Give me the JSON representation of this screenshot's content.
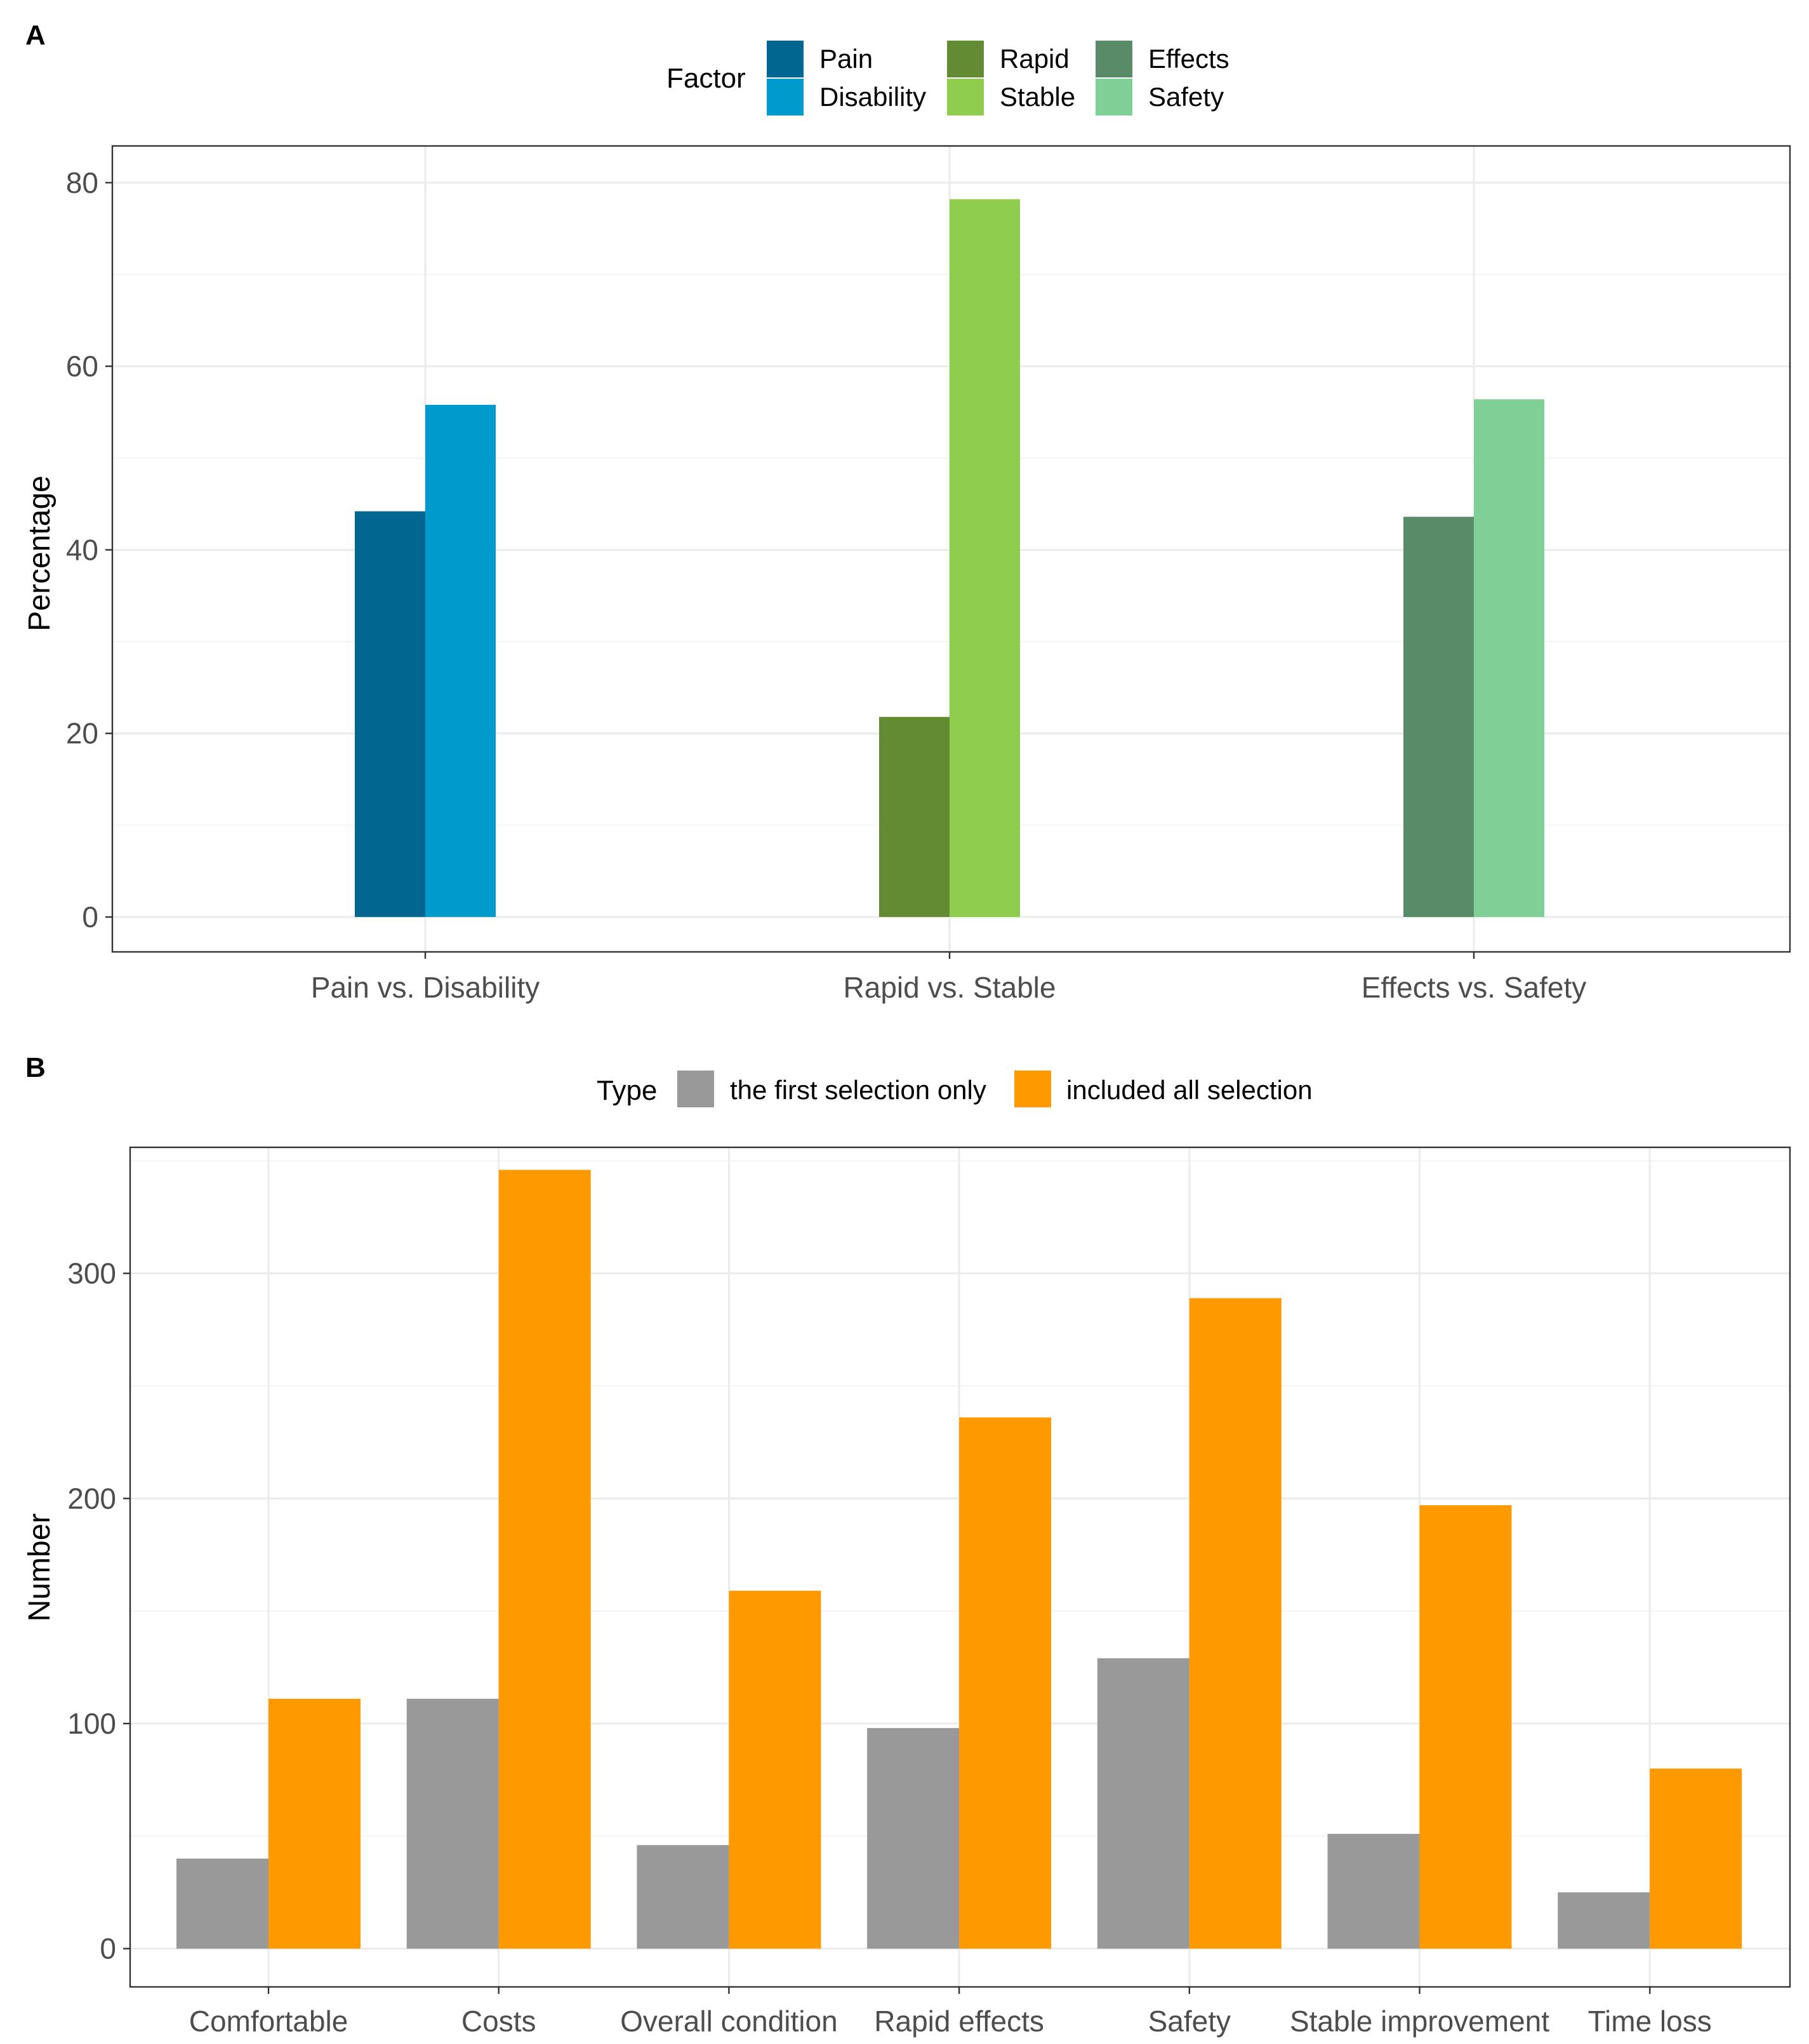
{
  "chart_data": [
    {
      "panel": "A",
      "type": "bar",
      "ylabel": "Percentage",
      "xlabel": "",
      "ylim": [
        -3.8,
        84
      ],
      "yticks": [
        0,
        20,
        40,
        60,
        80
      ],
      "grid": true,
      "legend": {
        "title": "Factor",
        "position": "top",
        "entries": [
          {
            "label": "Pain",
            "color": "#016790"
          },
          {
            "label": "Disability",
            "color": "#019ACD"
          },
          {
            "label": "Rapid",
            "color": "#628B33"
          },
          {
            "label": "Stable",
            "color": "#8FCD4F"
          },
          {
            "label": "Effects",
            "color": "#5A8B69"
          },
          {
            "label": "Safety",
            "color": "#80CF97"
          }
        ]
      },
      "categories": [
        "Pain vs. Disability",
        "Rapid vs. Stable",
        "Effects vs. Safety"
      ],
      "bars": [
        {
          "category": "Pain vs. Disability",
          "factor": "Pain",
          "value": 44.2,
          "color": "#016790"
        },
        {
          "category": "Pain vs. Disability",
          "factor": "Disability",
          "value": 55.8,
          "color": "#019ACD"
        },
        {
          "category": "Rapid vs. Stable",
          "factor": "Rapid",
          "value": 21.8,
          "color": "#628B33"
        },
        {
          "category": "Rapid vs. Stable",
          "factor": "Stable",
          "value": 78.2,
          "color": "#8FCD4F"
        },
        {
          "category": "Effects vs. Safety",
          "factor": "Effects",
          "value": 43.6,
          "color": "#5A8B69"
        },
        {
          "category": "Effects vs. Safety",
          "factor": "Safety",
          "value": 56.4,
          "color": "#80CF97"
        }
      ]
    },
    {
      "panel": "B",
      "type": "bar",
      "ylabel": "Number",
      "xlabel": "",
      "ylim": [
        -17,
        356
      ],
      "yticks": [
        0,
        100,
        200,
        300
      ],
      "grid": true,
      "legend": {
        "title": "Type",
        "position": "top",
        "entries": [
          {
            "label": "the first selection only",
            "color": "#999999"
          },
          {
            "label": "included all selection",
            "color": "#FF9900"
          }
        ]
      },
      "categories": [
        "Comfortable",
        "Costs",
        "Overall condition",
        "Rapid effects",
        "Safety",
        "Stable improvement",
        "Time loss"
      ],
      "series": [
        {
          "name": "the first selection only",
          "color": "#999999",
          "values": [
            40,
            111,
            46,
            98,
            129,
            51,
            25
          ]
        },
        {
          "name": "included all selection",
          "color": "#FF9900",
          "values": [
            111,
            346,
            159,
            236,
            289,
            197,
            80
          ]
        }
      ]
    }
  ]
}
